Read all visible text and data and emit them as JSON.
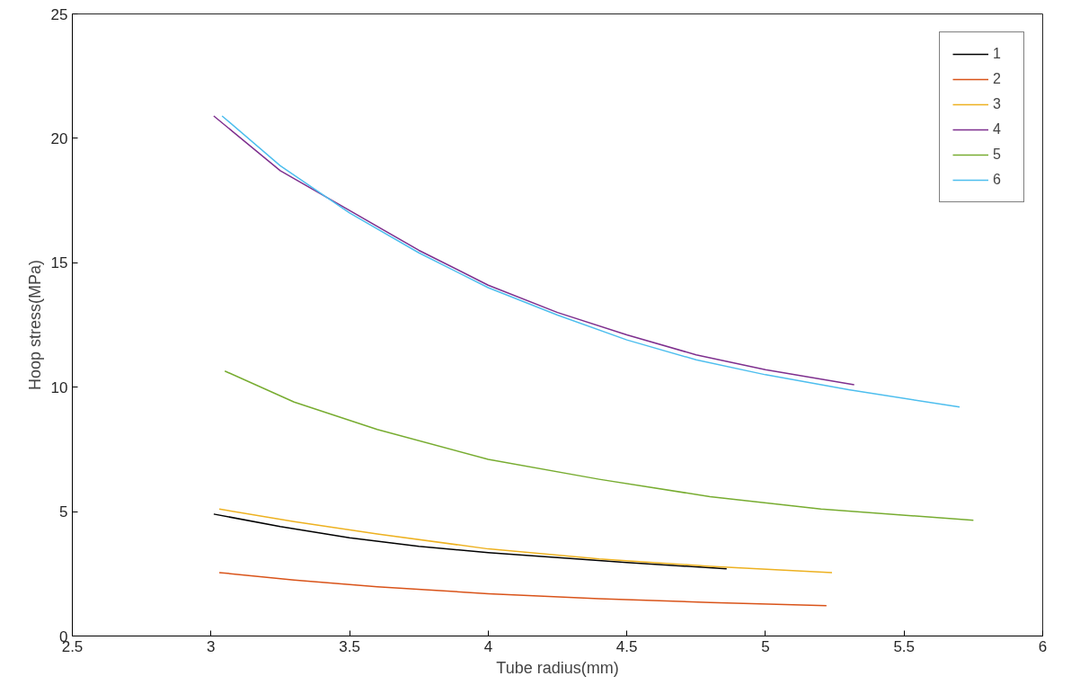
{
  "chart_data": {
    "type": "line",
    "xlabel": "Tube radius(mm)",
    "ylabel": "Hoop stress(MPa)",
    "xlim": [
      2.5,
      6
    ],
    "ylim": [
      0,
      25
    ],
    "xticks": [
      2.5,
      3,
      3.5,
      4,
      4.5,
      5,
      5.5,
      6
    ],
    "yticks": [
      0,
      5,
      10,
      15,
      20,
      25
    ],
    "grid": false,
    "legend": "top right",
    "marker": "none",
    "line_style": "solid",
    "series": [
      {
        "name": "1",
        "color": "#000000",
        "x": [
          3.01,
          3.25,
          3.5,
          3.75,
          4.0,
          4.25,
          4.5,
          4.86
        ],
        "values": [
          4.9,
          4.4,
          3.95,
          3.6,
          3.35,
          3.15,
          2.95,
          2.7
        ]
      },
      {
        "name": "2",
        "color": "#d95319",
        "x": [
          3.03,
          3.3,
          3.6,
          4.0,
          4.4,
          4.8,
          5.22
        ],
        "values": [
          2.55,
          2.25,
          1.98,
          1.7,
          1.5,
          1.35,
          1.22
        ]
      },
      {
        "name": "3",
        "color": "#edb120",
        "x": [
          3.03,
          3.3,
          3.6,
          4.0,
          4.4,
          4.8,
          5.24
        ],
        "values": [
          5.1,
          4.6,
          4.1,
          3.5,
          3.1,
          2.8,
          2.55
        ]
      },
      {
        "name": "4",
        "color": "#7e2f8e",
        "x": [
          3.01,
          3.25,
          3.5,
          3.75,
          4.0,
          4.25,
          4.5,
          4.75,
          5.0,
          5.32
        ],
        "values": [
          20.9,
          18.7,
          17.1,
          15.5,
          14.1,
          13.0,
          12.1,
          11.3,
          10.7,
          10.1
        ]
      },
      {
        "name": "5",
        "color": "#77ac30",
        "x": [
          3.05,
          3.3,
          3.6,
          4.0,
          4.4,
          4.8,
          5.2,
          5.75
        ],
        "values": [
          10.65,
          9.4,
          8.3,
          7.1,
          6.3,
          5.6,
          5.1,
          4.65
        ]
      },
      {
        "name": "6",
        "color": "#4dbeee",
        "x": [
          3.04,
          3.25,
          3.5,
          3.75,
          4.0,
          4.25,
          4.5,
          4.75,
          5.0,
          5.3,
          5.7
        ],
        "values": [
          20.9,
          18.9,
          17.0,
          15.4,
          14.0,
          12.9,
          11.9,
          11.1,
          10.5,
          9.9,
          9.2
        ]
      }
    ]
  }
}
